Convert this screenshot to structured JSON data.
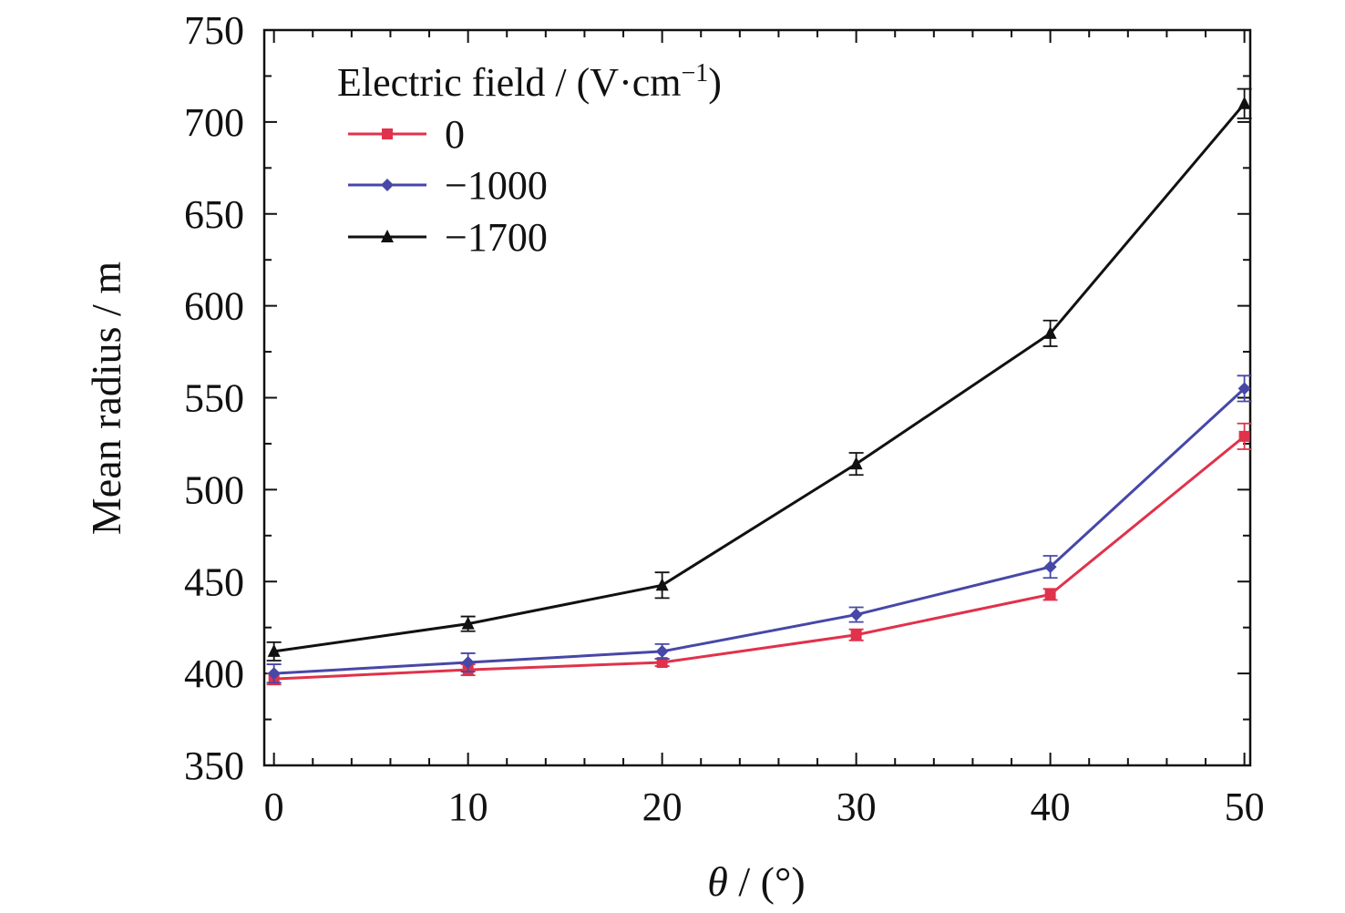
{
  "chart_data": {
    "type": "line",
    "xlabel_symbol": "θ",
    "xlabel_unit": " / (°)",
    "ylabel": "Mean radius / m",
    "xlim": [
      -0.5,
      50.3
    ],
    "ylim": [
      350,
      750
    ],
    "x_ticks": [
      0,
      10,
      20,
      30,
      40,
      50
    ],
    "y_ticks": [
      350,
      400,
      450,
      500,
      550,
      600,
      650,
      700,
      750
    ],
    "grid": false,
    "legend": {
      "title_prefix": "Electric field / (V·cm",
      "title_sup": "−1",
      "title_suffix": ")",
      "placement": "top-left"
    },
    "x": [
      0,
      10,
      20,
      30,
      40,
      50
    ],
    "series": [
      {
        "name": "0",
        "color": "#e0324b",
        "marker": "square",
        "values": [
          397,
          402,
          406,
          421,
          443,
          529
        ],
        "errors": [
          3,
          3,
          2,
          3,
          3,
          7
        ]
      },
      {
        "name": "−1000",
        "color": "#4747a8",
        "marker": "diamond",
        "values": [
          400,
          406,
          412,
          432,
          458,
          555
        ],
        "errors": [
          5,
          5,
          4,
          4,
          6,
          7
        ]
      },
      {
        "name": "−1700",
        "color": "#111111",
        "marker": "triangle",
        "values": [
          412,
          427,
          448,
          514,
          585,
          710
        ],
        "errors": [
          5,
          4,
          7,
          6,
          7,
          8
        ]
      }
    ]
  }
}
